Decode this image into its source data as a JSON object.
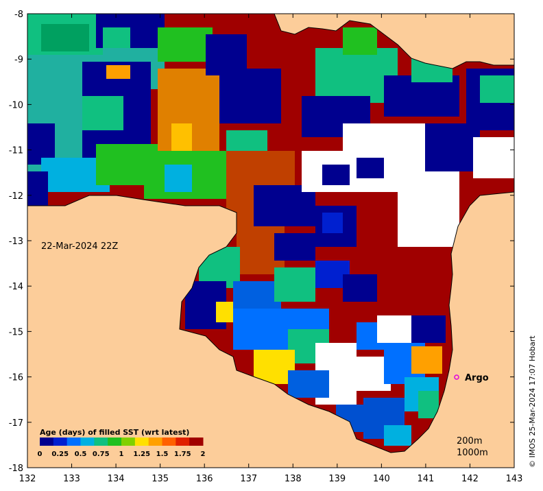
{
  "map": {
    "date_label": "22-Mar-2024 22Z",
    "credit": "© IMOS 25-Mar-2024 17:07 Hobart",
    "depth_labels": [
      "200m",
      "1000m"
    ],
    "argo_label": "Argo",
    "colors": {
      "land": "#fccd9a",
      "nodata": "#ffffff",
      "argo_marker": "#e000e0"
    }
  },
  "axes": {
    "x_ticks": [
      "132",
      "133",
      "134",
      "135",
      "136",
      "137",
      "138",
      "139",
      "140",
      "141",
      "142",
      "143"
    ],
    "y_ticks": [
      "-8",
      "-9",
      "-10",
      "-11",
      "-12",
      "-13",
      "-14",
      "-15",
      "-16",
      "-17",
      "-18"
    ]
  },
  "legend": {
    "title": "Age (days) of filled SST (wrt latest)",
    "ticks": [
      "0",
      "0.25",
      "0.5",
      "0.75",
      "1",
      "1.25",
      "1.5",
      "1.75",
      "2"
    ],
    "colors": [
      "#00008f",
      "#0020d0",
      "#0070ff",
      "#00b0e0",
      "#10c080",
      "#20c020",
      "#80d000",
      "#ffe000",
      "#ffa000",
      "#ff6000",
      "#e02000",
      "#a00000"
    ]
  },
  "chart_data": {
    "type": "heatmap",
    "title": "",
    "xlabel": "",
    "ylabel": "",
    "xlim": [
      132,
      143
    ],
    "ylim": [
      -18,
      -8
    ],
    "colorbar": {
      "label": "Age (days) of filled SST (wrt latest)",
      "range": [
        0,
        2
      ],
      "ticks": [
        0,
        0.25,
        0.5,
        0.75,
        1,
        1.25,
        1.5,
        1.75,
        2
      ]
    },
    "markers": [
      {
        "label": "Argo",
        "lon": 141.7,
        "lat": -16.0
      }
    ],
    "annotations": [
      "22-Mar-2024 22Z",
      "200m",
      "1000m",
      "© IMOS 25-Mar-2024 17:07 Hobart"
    ]
  }
}
